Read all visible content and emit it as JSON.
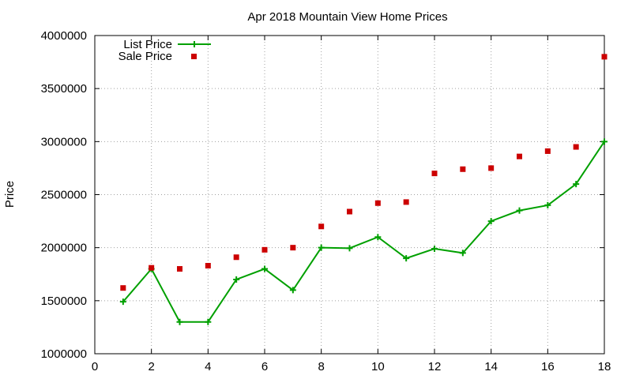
{
  "chart_data": {
    "type": "line",
    "title": "Apr 2018 Mountain View Home Prices",
    "xlabel": "",
    "ylabel": "Price",
    "xlim": [
      0,
      18
    ],
    "ylim": [
      1000000,
      4000000
    ],
    "x_ticks": [
      "0",
      "2",
      "4",
      "6",
      "8",
      "10",
      "12",
      "14",
      "16",
      "18"
    ],
    "y_ticks": [
      "1000000",
      "1500000",
      "2000000",
      "2500000",
      "3000000",
      "3500000",
      "4000000"
    ],
    "grid": true,
    "legend_position": "top-left",
    "series": [
      {
        "name": "List Price",
        "style": "line-with-plus-markers",
        "color": "#00a000",
        "x": [
          1,
          2,
          3,
          4,
          5,
          6,
          7,
          8,
          9,
          10,
          11,
          12,
          13,
          14,
          15,
          16,
          17,
          18
        ],
        "values": [
          1490000,
          1800000,
          1300000,
          1300000,
          1700000,
          1800000,
          1600000,
          2000000,
          1995000,
          2100000,
          1900000,
          1990000,
          1950000,
          2250000,
          2350000,
          2400000,
          2600000,
          3000000
        ]
      },
      {
        "name": "Sale Price",
        "style": "square-markers",
        "color": "#cc0000",
        "x": [
          1,
          2,
          3,
          4,
          5,
          6,
          7,
          8,
          9,
          10,
          11,
          12,
          13,
          14,
          15,
          16,
          17,
          18
        ],
        "values": [
          1620000,
          1810000,
          1800000,
          1830000,
          1910000,
          1980000,
          2000000,
          2200000,
          2340000,
          2420000,
          2430000,
          2700000,
          2740000,
          2750000,
          2860000,
          2910000,
          2950000,
          3800000
        ]
      }
    ]
  }
}
